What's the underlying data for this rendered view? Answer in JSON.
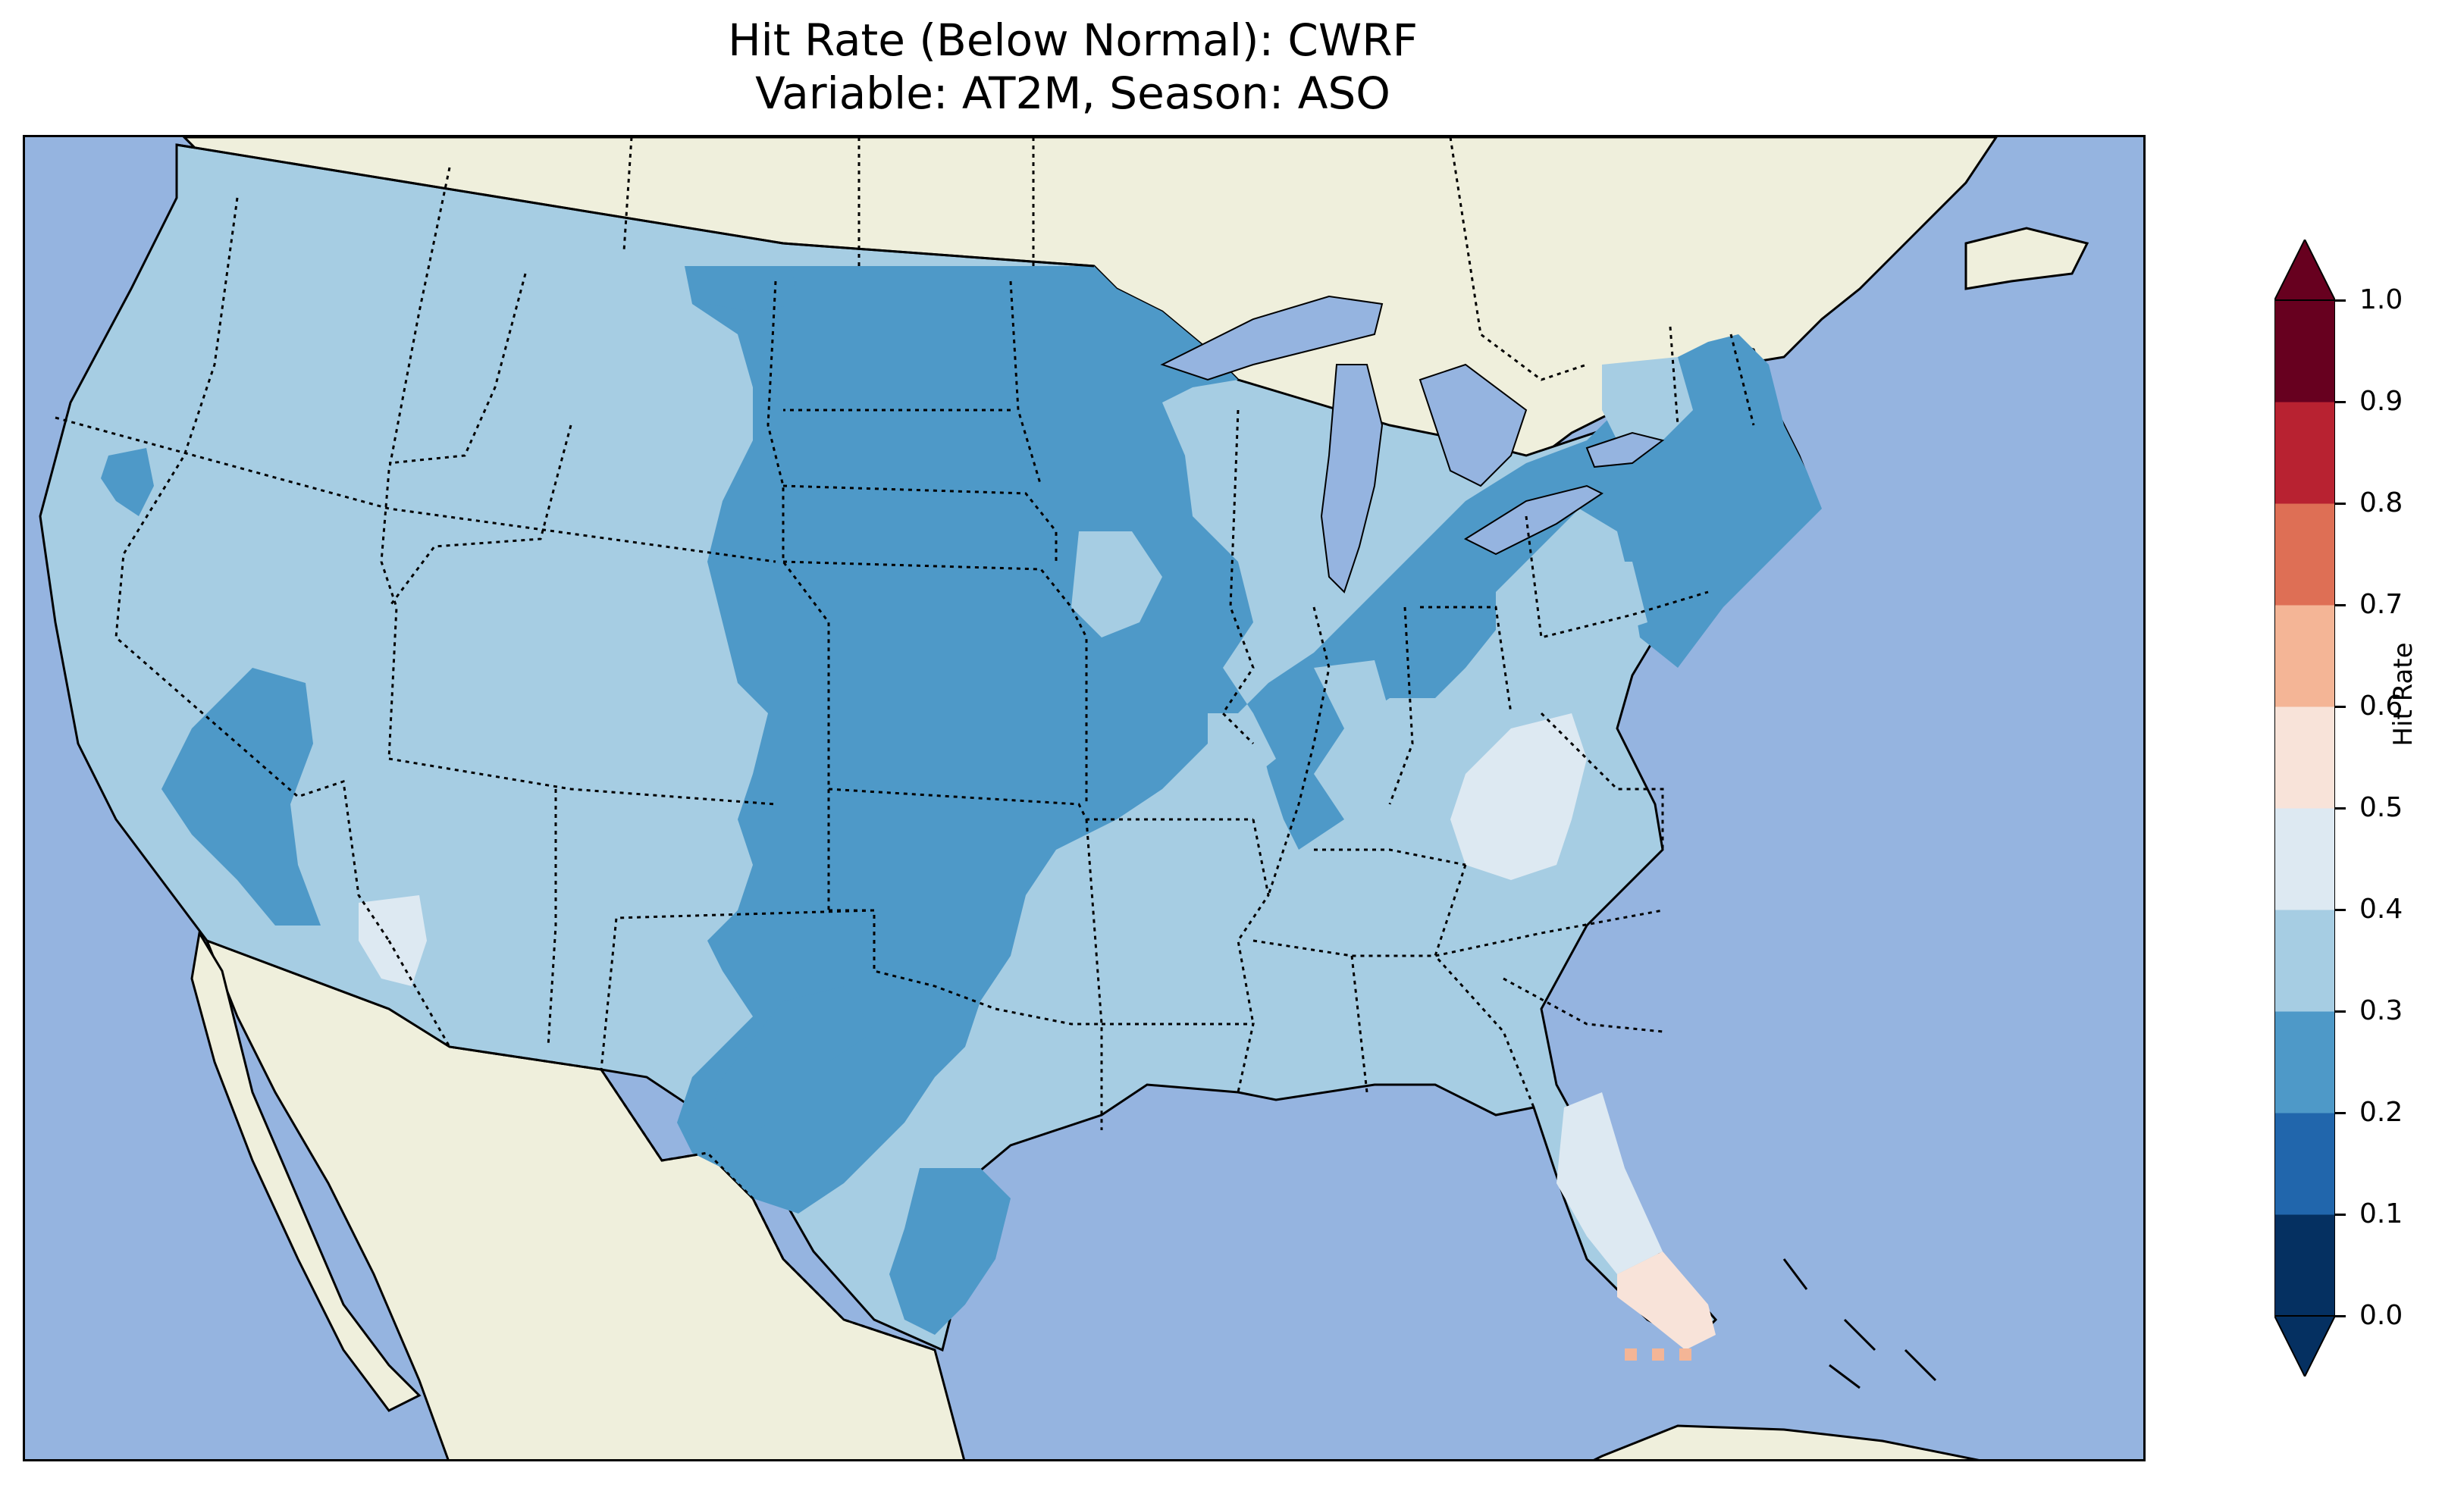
{
  "title": {
    "line1": "Hit Rate (Below Normal): CWRF",
    "line2": "Variable: AT2M, Season: ASO"
  },
  "colorbar": {
    "label": "Hit Rate",
    "ticks": [
      "0.0",
      "0.1",
      "0.2",
      "0.3",
      "0.4",
      "0.5",
      "0.6",
      "0.7",
      "0.8",
      "0.9",
      "1.0"
    ],
    "bins": [
      {
        "min": 0.0,
        "max": 0.1,
        "color": "#053061"
      },
      {
        "min": 0.1,
        "max": 0.2,
        "color": "#2166ac"
      },
      {
        "min": 0.2,
        "max": 0.3,
        "color": "#4e99c8"
      },
      {
        "min": 0.3,
        "max": 0.4,
        "color": "#a6cde3"
      },
      {
        "min": 0.4,
        "max": 0.5,
        "color": "#dde9f2"
      },
      {
        "min": 0.5,
        "max": 0.6,
        "color": "#f8e3d9"
      },
      {
        "min": 0.6,
        "max": 0.7,
        "color": "#f4b596"
      },
      {
        "min": 0.7,
        "max": 0.8,
        "color": "#de6f55"
      },
      {
        "min": 0.8,
        "max": 0.9,
        "color": "#b82231"
      },
      {
        "min": 0.9,
        "max": 1.0,
        "color": "#67001f"
      }
    ],
    "extend": "both"
  },
  "map": {
    "ocean_color": "#95b4e0",
    "land_color": "#efefdc",
    "lake_color": "#95b4e0",
    "region": "Contiguous United States",
    "field_summary": [
      {
        "area": "Western and Mountain states",
        "bin": "0.3-0.4"
      },
      {
        "area": "Northern and Central Plains, Upper Midwest",
        "bin": "0.2-0.3"
      },
      {
        "area": "Texas and Oklahoma (mixed)",
        "bin": "0.2-0.4"
      },
      {
        "area": "Northeast and Mid-Atlantic",
        "bin": "0.2-0.3"
      },
      {
        "area": "Southeast",
        "bin": "0.3-0.4"
      },
      {
        "area": "Appalachians and North Florida",
        "bin": "0.4-0.5"
      },
      {
        "area": "South Florida",
        "bin": "0.5-0.6"
      },
      {
        "area": "Florida Keys",
        "bin": "0.6-0.7"
      }
    ]
  }
}
